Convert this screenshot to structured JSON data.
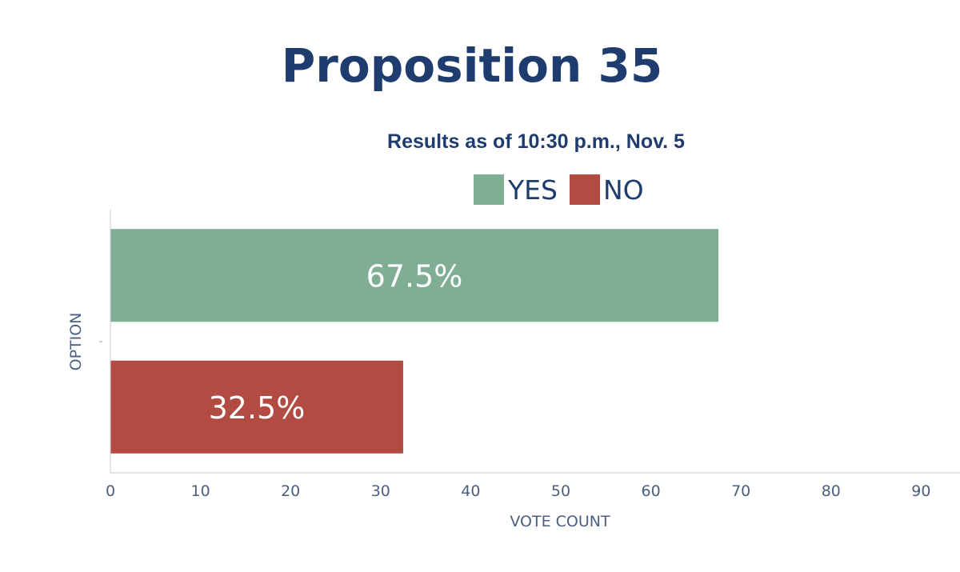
{
  "title": "Proposition 35",
  "subtitle": "Results as of 10:30 p.m., Nov. 5",
  "colors": {
    "title": "#1f3c6e",
    "axis_text": "#4a5f80",
    "yes": "#7fae94",
    "no": "#b24b42"
  },
  "chart_data": {
    "type": "bar",
    "orientation": "horizontal",
    "categories": [
      "YES",
      "NO"
    ],
    "values": [
      67.5,
      32.5
    ],
    "data_labels": [
      "67.5%",
      "32.5%"
    ],
    "colors": [
      "#7fae94",
      "#b24b42"
    ],
    "legend": [
      "YES",
      "NO"
    ],
    "legend_position": "top",
    "xlabel": "VOTE COUNT",
    "ylabel": "OPTION",
    "xlim": [
      0,
      94
    ],
    "xticks": [
      0,
      10,
      20,
      30,
      40,
      50,
      60,
      70,
      80,
      90
    ],
    "grid": false
  }
}
